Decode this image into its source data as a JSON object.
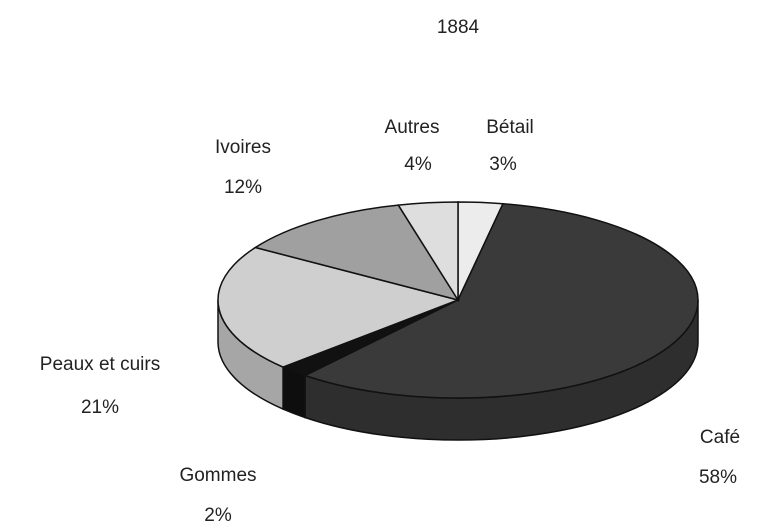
{
  "chart_data": {
    "type": "pie",
    "title": "1884",
    "categories": [
      "Bétail",
      "Café",
      "Gommes",
      "Peaux et cuirs",
      "Ivoires",
      "Autres"
    ],
    "values": [
      3,
      58,
      2,
      21,
      12,
      4
    ],
    "value_labels": [
      "3%",
      "58%",
      "2%",
      "21%",
      "12%",
      "4%"
    ],
    "colors": [
      "#ececec",
      "#3a3a3a",
      "#111111",
      "#cfcfcf",
      "#a0a0a0",
      "#dedede"
    ]
  }
}
